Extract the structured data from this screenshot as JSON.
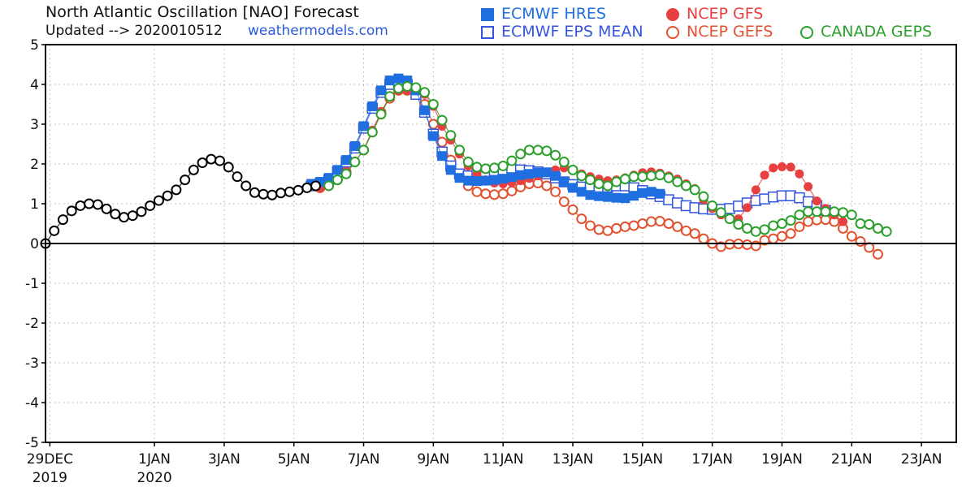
{
  "header": {
    "title": "North Atlantic Oscillation [NAO] Forecast",
    "updated": "Updated --> 2020010512",
    "site": "weathermodels.com"
  },
  "colors": {
    "ecmwf_hres": "#1f6fe0",
    "ecmwf_eps": "#3355dd",
    "gfs": "#e84040",
    "gefs": "#e2522e",
    "geps": "#2ca02c",
    "observed": "#000000"
  },
  "chart_data": {
    "type": "line",
    "title": "North Atlantic Oscillation [NAO] Forecast",
    "xlabel": "",
    "ylabel": "",
    "ylim": [
      -5,
      5
    ],
    "yticks": [
      5,
      4,
      3,
      2,
      1,
      0,
      -1,
      -2,
      -3,
      -4,
      -5
    ],
    "xlim": [
      "2019-12-28T21",
      "2020-01-24T00"
    ],
    "xticks": [
      {
        "date": "2019-12-29",
        "line1": "29DEC",
        "line2": "2019"
      },
      {
        "date": "2020-01-01",
        "line1": "1JAN",
        "line2": "2020"
      },
      {
        "date": "2020-01-03",
        "line1": "3JAN",
        "line2": ""
      },
      {
        "date": "2020-01-05",
        "line1": "5JAN",
        "line2": ""
      },
      {
        "date": "2020-01-07",
        "line1": "7JAN",
        "line2": ""
      },
      {
        "date": "2020-01-09",
        "line1": "9JAN",
        "line2": ""
      },
      {
        "date": "2020-01-11",
        "line1": "11JAN",
        "line2": ""
      },
      {
        "date": "2020-01-13",
        "line1": "13JAN",
        "line2": ""
      },
      {
        "date": "2020-01-15",
        "line1": "15JAN",
        "line2": ""
      },
      {
        "date": "2020-01-17",
        "line1": "17JAN",
        "line2": ""
      },
      {
        "date": "2020-01-19",
        "line1": "19JAN",
        "line2": ""
      },
      {
        "date": "2020-01-21",
        "line1": "21JAN",
        "line2": ""
      },
      {
        "date": "2020-01-23",
        "line1": "23JAN",
        "line2": ""
      }
    ],
    "grid": true,
    "legend": "top-right",
    "series": [
      {
        "key": "observed",
        "name": "",
        "start": "2019-12-28T21",
        "step_hours": 6,
        "marker": "open-circle",
        "values": [
          0.0,
          0.32,
          0.6,
          0.82,
          0.95,
          1.0,
          0.98,
          0.87,
          0.74,
          0.66,
          0.7,
          0.8,
          0.95,
          1.08,
          1.2,
          1.35,
          1.6,
          1.85,
          2.03,
          2.12,
          2.08,
          1.92,
          1.68,
          1.45,
          1.28,
          1.24,
          1.22,
          1.27,
          1.3,
          1.34,
          1.4,
          1.45
        ]
      },
      {
        "key": "ecmwf_hres",
        "name": "ECMWF HRES",
        "start": "2020-01-05T12",
        "step_hours": 6,
        "marker": "filled-square",
        "values": [
          1.5,
          1.55,
          1.65,
          1.85,
          2.1,
          2.45,
          2.95,
          3.45,
          3.85,
          4.1,
          4.15,
          4.1,
          3.85,
          3.35,
          2.7,
          2.2,
          1.85,
          1.65,
          1.58,
          1.57,
          1.58,
          1.6,
          1.63,
          1.67,
          1.72,
          1.75,
          1.78,
          1.79,
          1.7,
          1.55,
          1.4,
          1.3,
          1.22,
          1.19,
          1.17,
          1.15,
          1.14,
          1.2,
          1.27,
          1.3,
          1.25
        ]
      },
      {
        "key": "ecmwf_eps",
        "name": "ECMWF EPS MEAN",
        "start": "2020-01-05T12",
        "step_hours": 6,
        "marker": "open-square",
        "values": [
          1.45,
          1.5,
          1.6,
          1.8,
          2.05,
          2.4,
          2.9,
          3.4,
          3.8,
          4.0,
          4.05,
          4.0,
          3.75,
          3.3,
          2.75,
          2.3,
          1.95,
          1.75,
          1.7,
          1.72,
          1.78,
          1.83,
          1.85,
          1.86,
          1.85,
          1.83,
          1.8,
          1.75,
          1.65,
          1.55,
          1.48,
          1.42,
          1.4,
          1.4,
          1.42,
          1.45,
          1.45,
          1.4,
          1.33,
          1.25,
          1.18,
          1.1,
          1.02,
          0.95,
          0.9,
          0.87,
          0.86,
          0.86,
          0.88,
          0.94,
          1.02,
          1.08,
          1.12,
          1.17,
          1.2,
          1.2,
          1.15,
          1.05,
          0.95,
          0.83
        ]
      },
      {
        "key": "gfs",
        "name": "NCEP GFS",
        "start": "2020-01-05T18",
        "step_hours": 6,
        "marker": "filled-circle",
        "values": [
          1.4,
          1.5,
          1.6,
          1.8,
          2.05,
          2.35,
          2.85,
          3.3,
          3.7,
          3.85,
          3.85,
          3.85,
          3.75,
          3.45,
          2.95,
          2.6,
          2.25,
          1.95,
          1.75,
          1.6,
          1.52,
          1.5,
          1.53,
          1.58,
          1.64,
          1.7,
          1.78,
          1.85,
          1.9,
          1.85,
          1.75,
          1.68,
          1.62,
          1.58,
          1.6,
          1.65,
          1.72,
          1.78,
          1.8,
          1.77,
          1.7,
          1.62,
          1.5,
          1.38,
          1.1,
          0.88,
          0.72,
          0.6,
          0.62,
          0.9,
          1.35,
          1.72,
          1.9,
          1.93,
          1.92,
          1.75,
          1.43,
          1.07,
          0.88,
          0.72,
          0.55
        ]
      },
      {
        "key": "gefs",
        "name": "NCEP GEFS",
        "start": "2020-01-05T18",
        "step_hours": 6,
        "marker": "open-circle",
        "values": [
          1.4,
          1.5,
          1.6,
          1.8,
          2.05,
          2.35,
          2.8,
          3.3,
          3.65,
          3.85,
          3.85,
          3.75,
          3.5,
          3.0,
          2.55,
          2.1,
          1.72,
          1.45,
          1.3,
          1.25,
          1.23,
          1.25,
          1.32,
          1.42,
          1.5,
          1.52,
          1.45,
          1.3,
          1.05,
          0.85,
          0.62,
          0.45,
          0.35,
          0.32,
          0.38,
          0.42,
          0.45,
          0.5,
          0.55,
          0.56,
          0.5,
          0.42,
          0.32,
          0.25,
          0.12,
          0.0,
          -0.08,
          -0.02,
          -0.01,
          -0.03,
          -0.06,
          0.08,
          0.12,
          0.18,
          0.25,
          0.42,
          0.55,
          0.59,
          0.6,
          0.55,
          0.38,
          0.18,
          0.05,
          -0.1,
          -0.27
        ]
      },
      {
        "key": "geps",
        "name": "CANADA GEPS",
        "start": "2020-01-06T00",
        "step_hours": 6,
        "marker": "open-circle",
        "values": [
          1.45,
          1.6,
          1.75,
          2.05,
          2.35,
          2.8,
          3.25,
          3.7,
          3.9,
          3.95,
          3.92,
          3.8,
          3.5,
          3.1,
          2.72,
          2.35,
          2.05,
          1.92,
          1.88,
          1.9,
          1.95,
          2.08,
          2.25,
          2.35,
          2.35,
          2.33,
          2.22,
          2.05,
          1.85,
          1.7,
          1.6,
          1.5,
          1.45,
          1.55,
          1.62,
          1.68,
          1.68,
          1.7,
          1.72,
          1.65,
          1.55,
          1.45,
          1.35,
          1.18,
          0.95,
          0.78,
          0.62,
          0.48,
          0.38,
          0.3,
          0.35,
          0.45,
          0.5,
          0.58,
          0.72,
          0.8,
          0.8,
          0.8,
          0.8,
          0.78,
          0.72,
          0.5,
          0.48,
          0.38,
          0.3
        ]
      }
    ]
  }
}
